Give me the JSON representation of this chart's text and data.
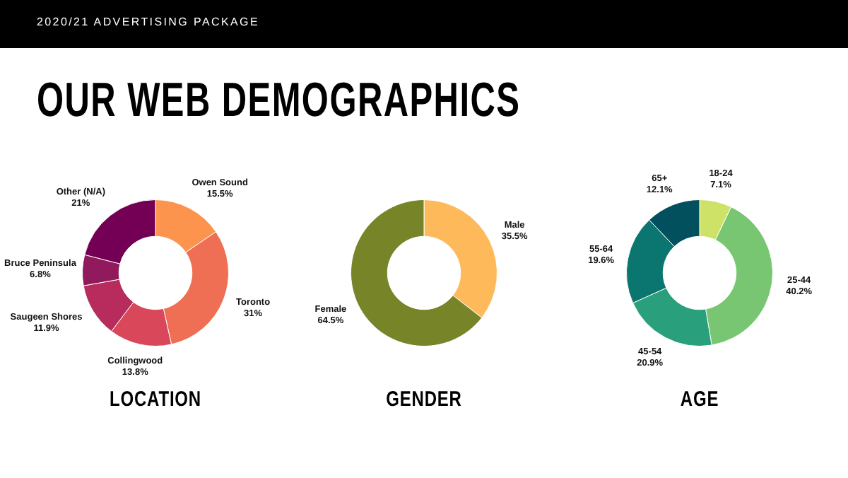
{
  "chart_data": [
    {
      "type": "other",
      "title": "OUR WEB DEMOGRAPHICS",
      "subtitle": "2020/21 ADVERTISING PACKAGE"
    },
    {
      "type": "donut",
      "title": "LOCATION",
      "categories": [
        "Owen Sound",
        "Toronto",
        "Collingwood",
        "Saugeen Shores",
        "Bruce Peninsula",
        "Other (N/A)"
      ],
      "values": [
        15.5,
        31,
        13.8,
        11.9,
        6.8,
        21
      ],
      "value_labels": [
        "15.5%",
        "31%",
        "13.8%",
        "11.9%",
        "6.8%",
        "21%"
      ],
      "colors": [
        "#fd944e",
        "#ef6f55",
        "#d9475a",
        "#b72c5c",
        "#911a5c",
        "#730055"
      ],
      "legend": false
    },
    {
      "type": "donut",
      "title": "GENDER",
      "categories": [
        "Male",
        "Female"
      ],
      "values": [
        35.5,
        64.5
      ],
      "value_labels": [
        "35.5%",
        "64.5%"
      ],
      "colors": [
        "#fdb95a",
        "#778427"
      ],
      "legend": false
    },
    {
      "type": "donut",
      "title": "AGE",
      "categories": [
        "18-24",
        "25-44",
        "45-54",
        "55-64",
        "65+"
      ],
      "values": [
        7.1,
        40.2,
        20.9,
        19.6,
        12.1
      ],
      "value_labels": [
        "7.1%",
        "40.2%",
        "20.9%",
        "19.6%",
        "12.1%"
      ],
      "colors": [
        "#cde267",
        "#79c672",
        "#2a9f7b",
        "#0b7570",
        "#02505e"
      ],
      "legend": false
    }
  ]
}
